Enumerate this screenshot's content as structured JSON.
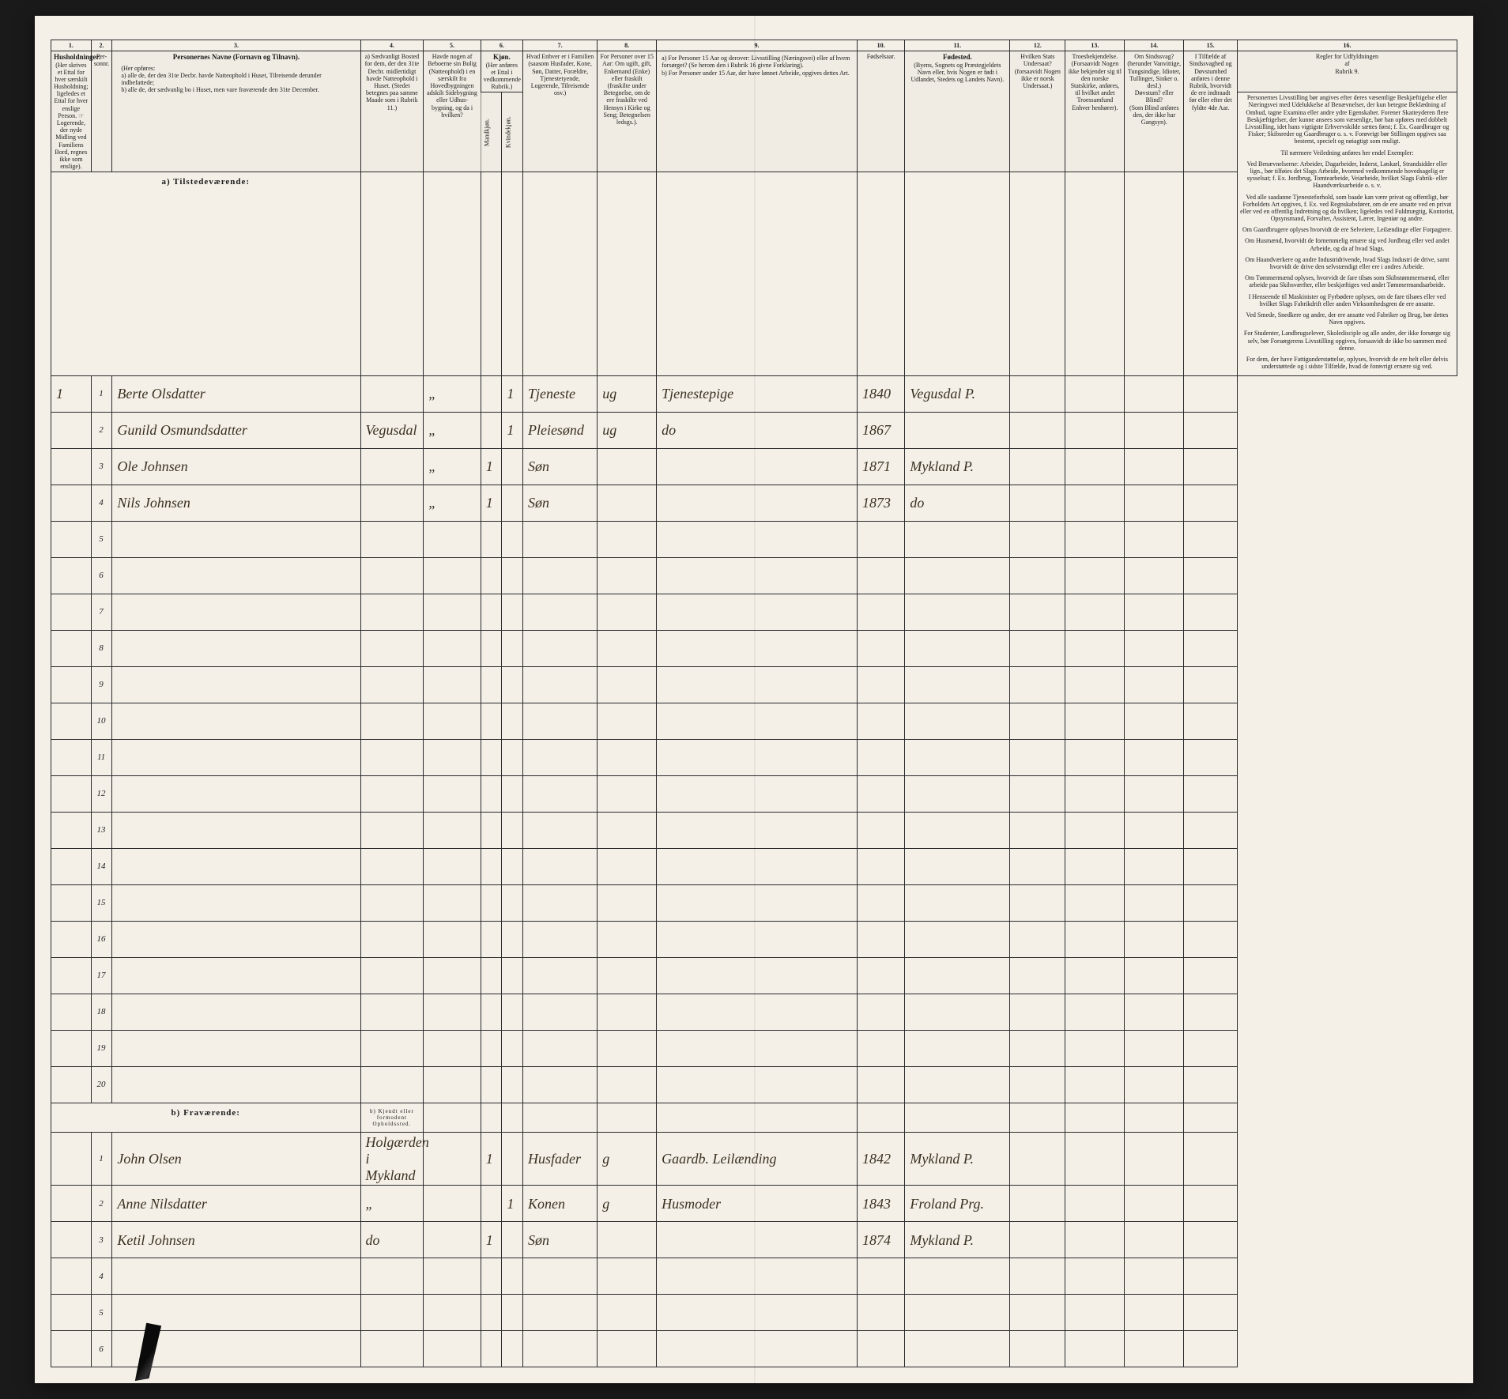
{
  "columns": {
    "nums": [
      "1.",
      "2.",
      "3.",
      "4.",
      "5.",
      "6.",
      "7.",
      "8.",
      "9.",
      "10.",
      "11.",
      "12.",
      "13.",
      "14.",
      "15.",
      "16."
    ],
    "h1": {
      "title": "Husholdninger.",
      "body": "(Her skrives et Ettal for hver særskilt Husholdning; ligeledes et Ettal for hver enslige Person. ☞ Logerende, der nyde Midling ved Familiens Bord, regnes ikke som enslige)."
    },
    "h2": {
      "title": "Personernes Navne (Fornavn og Tilnavn).",
      "body": "(Her opføres:\na) alle de, der den 31te Decbr. havde Natteophold i Huset, Tilreisende derunder indbefattede;\nb) alle de, der sædvanlig bo i Huset, men vare fraværende den 31te December."
    },
    "h4": "a) Sædvanligt Bosted for dem, der den 31te Decbr. midlertidigt havde Natteophold i Huset. (Stedet betegnes paa samme Maade som i Rubrik 11.)",
    "h5": "Havde nogen af Beboerne sin Bolig (Natteophold) i en særskilt fra Hovedbygningen adskilt Sidebygning eller Udhus-bygning, og da i hvilken?",
    "h6": {
      "title": "Kjøn.",
      "body": "(Her anføres et Ettal i vedkommende Rubrik.)",
      "sub1": "Mandkjøn.",
      "sub2": "Kvindekjøn."
    },
    "h7": "Hvad Enhver er i Familien\n(saasom Husfader, Kone, Søn, Datter, Forældre, Tjenestetyende, Logerende, Tilreisende osv.)",
    "h8": "For Personer over 15 Aar: Om ugift, gift, Enkemand (Enke) eller fraskilt (fraskilte under Betegnelse, om de ere fraskilte ved Hensyn i Kirke og Seng; Betegnelsen ledsgs.).",
    "h9": "a) For Personer 15 Aar og derover: Livsstilling (Næringsvei) eller af hvem forsørget? (Se herom den i Rubrik 16 givne Forklaring).\nb) For Personer under 15 Aar, der have lønnet Arbeide, opgives dettes Art.",
    "h10": "Fødselsaar.",
    "h11": {
      "title": "Fødested.",
      "body": "(Byens, Sognets og Præstegjeldets Navn eller, hvis Nogen er født i Udlandet, Stedets og Landets Navn)."
    },
    "h12": "Hvilken Stats Undersaat?\n(forsaavidt Nogen ikke er norsk Undersaat.)",
    "h13": "Troesbekjendelse.\n(Forsaavidt Nogen ikke bekjender sig til den norske Statskirke, anføres, til hvilket andet Troessamfund Enhver henhører).",
    "h14": "Om Sindssvag?\n(herunder Vanvittige, Tungsindige, Idioter, Tullinger, Sinker o. desl.)\nDøvstum? eller Blind?\n(Som Blind anføres den, der ikke har Gangsyn).",
    "h15": "I Tilfælde af Sindssvaghed og Døvstumhed anføres i denne Rubrik, hvorvidt de ere indtraadt før eller efter det fyldte 4de Aar.",
    "h16": {
      "title": "Regler for Udfyldningen\naf\nRubrik 9."
    }
  },
  "sections": {
    "present": "a) Tilstedeværende:",
    "absent": "b) Fraværende:",
    "absent_col4": "b) Kjendt eller formodent Opholdssted."
  },
  "present_rows": [
    {
      "n": "1",
      "c1": "1",
      "name": "Berte Olsdatter",
      "c4": "",
      "c5": "„",
      "k": "1",
      "fam": "Tjeneste",
      "stat": "ug",
      "occ": "Tjenestepige",
      "yr": "1840",
      "place": "Vegusdal P."
    },
    {
      "n": "2",
      "c1": "",
      "name": "Gunild Osmundsdatter",
      "c4": "Vegusdal",
      "c5": "„",
      "k": "1",
      "fam": "Pleiesønd",
      "stat": "ug",
      "occ": "do",
      "yr": "1867",
      "place": ""
    },
    {
      "n": "3",
      "c1": "",
      "name": "Ole Johnsen",
      "c4": "",
      "c5": "„",
      "m": "1",
      "fam": "Søn",
      "stat": "",
      "occ": "",
      "yr": "1871",
      "place": "Mykland P."
    },
    {
      "n": "4",
      "c1": "",
      "name": "Nils Johnsen",
      "c4": "",
      "c5": "„",
      "m": "1",
      "fam": "Søn",
      "stat": "",
      "occ": "",
      "yr": "1873",
      "place": "do"
    }
  ],
  "absent_rows": [
    {
      "n": "1",
      "name": "John Olsen",
      "c4": "Holgærden i Mykland",
      "m": "1",
      "fam": "Husfader",
      "stat": "g",
      "occ": "Gaardb. Leilænding",
      "yr": "1842",
      "place": "Mykland P."
    },
    {
      "n": "2",
      "name": "Anne Nilsdatter",
      "c4": "„",
      "k": "1",
      "fam": "Konen",
      "stat": "g",
      "occ": "Husmoder",
      "yr": "1843",
      "place": "Froland Prg."
    },
    {
      "n": "3",
      "name": "Ketil Johnsen",
      "c4": "do",
      "m": "1",
      "fam": "Søn",
      "stat": "",
      "occ": "",
      "yr": "1874",
      "place": "Mykland P."
    }
  ],
  "rules_text": [
    "Personernes Livsstilling bør angives efter deres væsentlige Beskjæftigelse eller Næringsvei med Udelukkelse af Benævnelser, der kun betegne Beklædning af Ombud, tagne Examina eller andre ydre Egenskaber. Forener Skatteyderen flere Beskjæftigelser, der kunne ansees som væsenlige, bør han opføres med dobbelt Livsstilling, idet hans vigtigste Erhvervskilde sættes først; f. Ex. Gaardbruger og Fisker; Skibsreder og Gaardbruger o. s. v. Forøvrigt bør Stillingen opgives saa bestemt, specielt og nøiagtigt som muligt.",
    "Til nærmere Veiledning anføres her endel Exempler:",
    "Ved Benævnelserne: Arbeider, Dagarbeider, Inderst, Løskarl, Strandsidder eller lign., bør tilføies det Slags Arbeide, hvormed vedkommende hovedsagelig er sysselsat; f. Ex. Jordbrug, Tomtearbeide, Veiarbeide, hvilket Slags Fabrik- eller Haandværksarbeide o. s. v.",
    "Ved alle saadanne Tjenesteforhold, som baade kan være privat og offentligt, bør Forholdets Art opgives, f. Ex. ved Regnskabsfører, om de ere ansatte ved en privat eller ved en offentlig Indretning og da hvilken; ligeledes ved Fuldmægtig, Kontorist, Opsynsmand, Forvalter, Assistent, Lærer, Ingeniør og andre.",
    "Om Gaardbrugere oplyses hvorvidt de ere Selveiere, Leilændinge eller Forpagtere.",
    "Om Husmænd, hvorvidt de fornemmelig ernære sig ved Jordbrug eller ved andet Arbeide, og da af hvad Slags.",
    "Om Haandværkere og andre Industridrivende, hvad Slags Industri de drive, samt hvorvidt de drive den selvstændigt eller ere i andres Arbeide.",
    "Om Tømmermænd oplyses, hvorvidt de fare tilsøs som Skibstømmermænd, eller arbeide paa Skibsværfter, eller beskjæftiges ved andet Tømmermandsarbeide.",
    "I Henseende til Maskinister og Fyrbødere oplyses, om de fare tilsøes eller ved hvilket Slags Fabrikdrift eller anden Virksomhedsgren de ere ansatte.",
    "Ved Smede, Snedkere og andre, der ere ansatte ved Fabriker og Brug, bør dettes Navn opgives.",
    "For Studenter, Landbrugselever, Skoledisciple og alle andre, der ikke forsørge sig selv, bør Forsørgerens Livsstilling opgives, forsaavidt de ikke bo sammen med denne.",
    "For dem, der have Fattigunderstøttelse, oplyses, hvorvidt de ere helt eller delvis understøttede og i sidste Tilfælde, hvad de forøvrigt ernære sig ved."
  ]
}
